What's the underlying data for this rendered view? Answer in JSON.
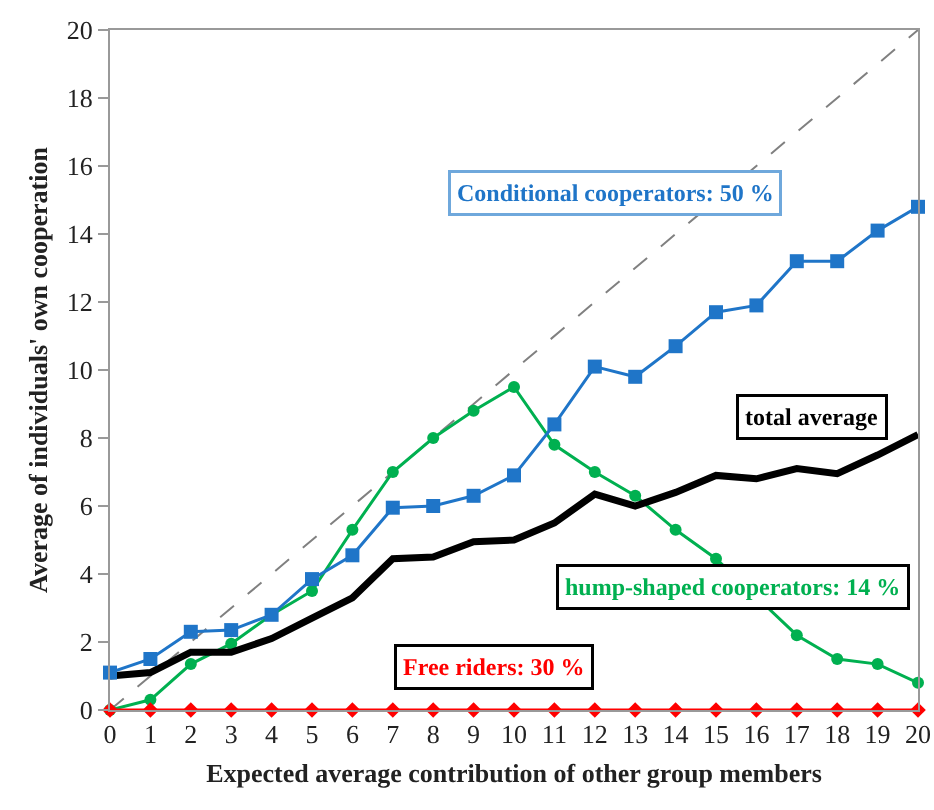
{
  "chart_data": {
    "type": "line",
    "xlabel": "Expected average contribution of other group members",
    "ylabel": "Average of individuals' own cooperation",
    "x": [
      0,
      1,
      2,
      3,
      4,
      5,
      6,
      7,
      8,
      9,
      10,
      11,
      12,
      13,
      14,
      15,
      16,
      17,
      18,
      19,
      20
    ],
    "series": [
      {
        "name": null,
        "color": "#808080",
        "line_style": "dashed",
        "marker": "none",
        "x": [
          0,
          20
        ],
        "values": [
          0,
          20
        ]
      },
      {
        "name": "Conditional cooperators: 50 %",
        "color": "#1f75c8",
        "marker": "square",
        "values": [
          1.1,
          1.5,
          2.3,
          2.35,
          2.8,
          3.85,
          4.55,
          5.95,
          6.0,
          6.3,
          6.9,
          8.4,
          10.1,
          9.8,
          10.7,
          11.7,
          11.9,
          13.2,
          13.2,
          14.1,
          14.8
        ]
      },
      {
        "name": "hump-shaped cooperators: 14 %",
        "color": "#00b050",
        "marker": "circle",
        "values": [
          0,
          0.3,
          1.35,
          1.95,
          2.8,
          3.5,
          5.3,
          7.0,
          8.0,
          8.8,
          9.5,
          7.8,
          7.0,
          6.3,
          5.3,
          4.45,
          null,
          2.2,
          1.5,
          1.35,
          0.8
        ]
      },
      {
        "name": "total average",
        "color": "#000000",
        "marker": "none",
        "values": [
          1.0,
          1.1,
          1.7,
          1.7,
          2.1,
          2.7,
          3.3,
          4.45,
          4.5,
          4.95,
          5.0,
          5.5,
          6.35,
          6.0,
          6.4,
          6.9,
          6.8,
          7.1,
          6.95,
          7.5,
          8.1
        ]
      },
      {
        "name": "Free riders: 30 %",
        "color": "#ff0000",
        "marker": "diamond",
        "values": [
          0,
          0,
          0,
          0,
          0,
          0,
          0,
          0,
          0,
          0,
          0,
          0,
          0,
          0,
          0,
          0,
          0,
          0,
          0,
          0,
          0
        ]
      }
    ],
    "xlim": [
      0,
      20
    ],
    "xticks": [
      0,
      1,
      2,
      3,
      4,
      5,
      6,
      7,
      8,
      9,
      10,
      11,
      12,
      13,
      14,
      15,
      16,
      17,
      18,
      19,
      20
    ],
    "ylim": [
      0,
      20
    ],
    "yticks": [
      0,
      2,
      4,
      6,
      8,
      10,
      12,
      14,
      16,
      18,
      20
    ],
    "grid": false,
    "legend": false
  }
}
